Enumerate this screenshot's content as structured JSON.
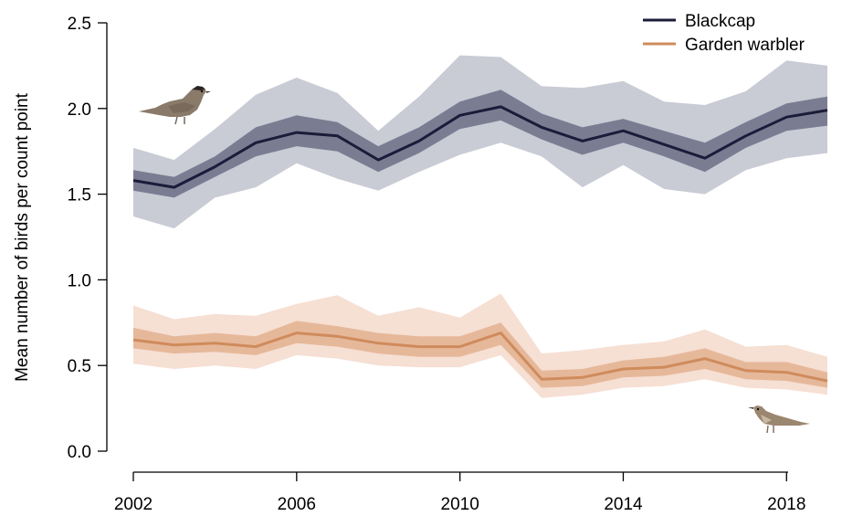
{
  "chart_data": {
    "type": "line",
    "title": "",
    "xlabel": "",
    "ylabel": "Mean number of birds per count point",
    "xlim": [
      2002,
      2019
    ],
    "ylim": [
      0,
      2.5
    ],
    "xticks": [
      2002,
      2006,
      2010,
      2014,
      2018
    ],
    "xtick_labels": [
      "2002",
      "2006",
      "2010",
      "2014",
      "2018"
    ],
    "yticks": [
      0,
      0.5,
      1,
      1.5,
      2,
      2.5
    ],
    "ytick_labels": [
      "0.0",
      "0.5",
      "1.0",
      "1.5",
      "2.0",
      "2.5"
    ],
    "grid": false,
    "legend_position": "top-right",
    "x": [
      2002,
      2003,
      2004,
      2005,
      2006,
      2007,
      2008,
      2009,
      2010,
      2011,
      2012,
      2013,
      2014,
      2015,
      2016,
      2017,
      2018,
      2019
    ],
    "series": [
      {
        "name": "Blackcap",
        "color": "#1c1b3a",
        "inner_band_color": "#7a7d92",
        "outer_band_color": "#c9cbd5",
        "values": [
          1.58,
          1.54,
          1.66,
          1.8,
          1.86,
          1.84,
          1.7,
          1.81,
          1.96,
          2.01,
          1.89,
          1.81,
          1.87,
          1.79,
          1.71,
          1.84,
          1.95,
          1.99
        ],
        "inner_lower": [
          1.52,
          1.48,
          1.6,
          1.72,
          1.78,
          1.75,
          1.63,
          1.74,
          1.88,
          1.93,
          1.82,
          1.73,
          1.8,
          1.72,
          1.63,
          1.77,
          1.87,
          1.9
        ],
        "inner_upper": [
          1.64,
          1.6,
          1.72,
          1.89,
          1.96,
          1.92,
          1.78,
          1.89,
          2.04,
          2.11,
          1.97,
          1.89,
          1.94,
          1.87,
          1.8,
          1.92,
          2.03,
          2.07
        ],
        "outer_lower": [
          1.37,
          1.3,
          1.48,
          1.54,
          1.68,
          1.59,
          1.52,
          1.63,
          1.73,
          1.8,
          1.72,
          1.54,
          1.67,
          1.53,
          1.5,
          1.64,
          1.71,
          1.74
        ],
        "outer_upper": [
          1.77,
          1.7,
          1.88,
          2.08,
          2.18,
          2.09,
          1.87,
          2.07,
          2.31,
          2.3,
          2.13,
          2.12,
          2.16,
          2.04,
          2.02,
          2.1,
          2.28,
          2.25
        ]
      },
      {
        "name": "Garden warbler",
        "color": "#cf8b5c",
        "inner_band_color": "#e6b89a",
        "outer_band_color": "#f6dfd3",
        "values": [
          0.65,
          0.62,
          0.63,
          0.61,
          0.69,
          0.67,
          0.63,
          0.61,
          0.61,
          0.69,
          0.42,
          0.43,
          0.48,
          0.49,
          0.54,
          0.47,
          0.46,
          0.41
        ],
        "inner_lower": [
          0.6,
          0.57,
          0.58,
          0.56,
          0.63,
          0.61,
          0.57,
          0.55,
          0.55,
          0.62,
          0.37,
          0.38,
          0.43,
          0.44,
          0.48,
          0.42,
          0.41,
          0.37
        ],
        "inner_upper": [
          0.72,
          0.67,
          0.69,
          0.67,
          0.76,
          0.73,
          0.69,
          0.67,
          0.67,
          0.75,
          0.47,
          0.48,
          0.53,
          0.55,
          0.6,
          0.52,
          0.52,
          0.46
        ],
        "outer_lower": [
          0.51,
          0.48,
          0.5,
          0.48,
          0.56,
          0.54,
          0.5,
          0.49,
          0.49,
          0.56,
          0.31,
          0.33,
          0.37,
          0.38,
          0.42,
          0.37,
          0.36,
          0.33
        ],
        "outer_upper": [
          0.85,
          0.77,
          0.8,
          0.79,
          0.86,
          0.91,
          0.79,
          0.84,
          0.78,
          0.92,
          0.57,
          0.59,
          0.62,
          0.64,
          0.71,
          0.61,
          0.62,
          0.55
        ]
      }
    ],
    "icons": [
      {
        "name": "blackcap-bird-icon",
        "series": "Blackcap"
      },
      {
        "name": "garden-warbler-bird-icon",
        "series": "Garden warbler"
      }
    ]
  }
}
